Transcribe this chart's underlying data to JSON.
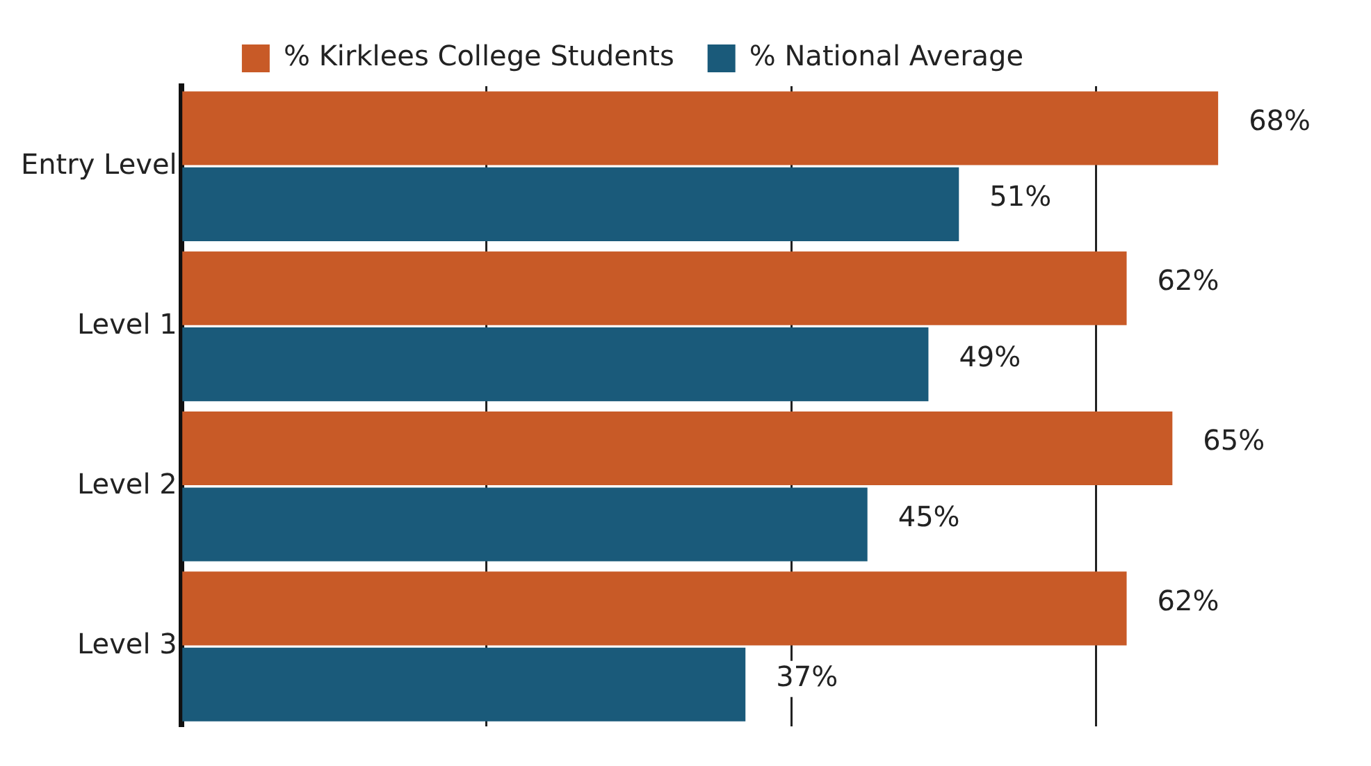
{
  "chart_data": {
    "type": "bar",
    "orientation": "horizontal",
    "categories": [
      "Entry Level",
      "Level 1",
      "Level 2",
      "Level 3"
    ],
    "series": [
      {
        "name": "% Kirklees College Students",
        "color": "#c85a27",
        "values": [
          68,
          62,
          65,
          62
        ],
        "value_labels": [
          "68%",
          "62%",
          "65%",
          "62%"
        ]
      },
      {
        "name": "% National Average",
        "color": "#1a5a7a",
        "values": [
          51,
          49,
          45,
          37
        ],
        "value_labels": [
          "51%",
          "49%",
          "45%",
          "37%"
        ]
      }
    ],
    "xticks": [
      {
        "value": 0,
        "label": null
      },
      {
        "value": 20,
        "label": null
      },
      {
        "value": 40,
        "label": null
      },
      {
        "value": 60,
        "label": null
      }
    ],
    "grid": "x",
    "legend": "top"
  }
}
